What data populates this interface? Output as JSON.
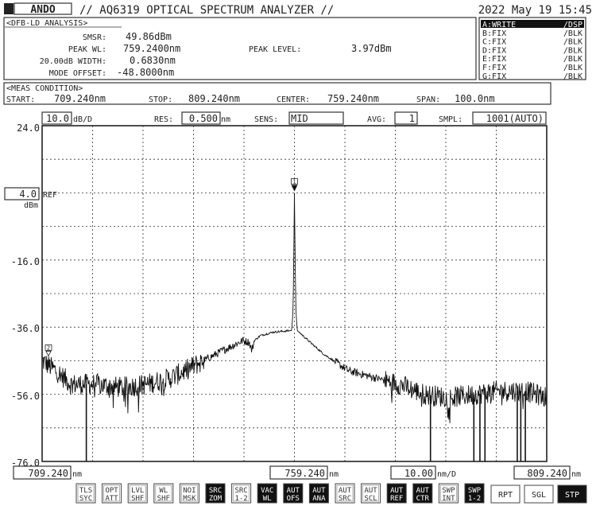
{
  "header": {
    "logo": "ANDO",
    "title": "// AQ6319 OPTICAL SPECTRUM ANALYZER //",
    "datetime": "2022 May 19 15:45"
  },
  "analysis": {
    "title": "<DFB-LD ANALYSIS>",
    "rows": [
      {
        "label": "SMSR:",
        "value": "49.86dBm"
      },
      {
        "label": "PEAK WL:",
        "value": "759.2400nm"
      },
      {
        "label": "20.00dB WIDTH:",
        "value": "0.6830nm"
      },
      {
        "label": "MODE OFFSET:",
        "value": "-48.8000nm"
      }
    ],
    "peak_level_label": "PEAK LEVEL:",
    "peak_level_value": "3.97dBm"
  },
  "traces": [
    {
      "name": "A:WRITE",
      "mode": "/DSP",
      "active": true
    },
    {
      "name": "B:FIX",
      "mode": "/BLK",
      "active": false
    },
    {
      "name": "C:FIX",
      "mode": "/BLK",
      "active": false
    },
    {
      "name": "D:FIX",
      "mode": "/BLK",
      "active": false
    },
    {
      "name": "E:FIX",
      "mode": "/BLK",
      "active": false
    },
    {
      "name": "F:FIX",
      "mode": "/BLK",
      "active": false
    },
    {
      "name": "G:FIX",
      "mode": "/BLK",
      "active": false
    }
  ],
  "meas": {
    "title": "<MEAS CONDITION>",
    "start_label": "START:",
    "start": "709.240nm",
    "stop_label": "STOP:",
    "stop": "809.240nm",
    "center_label": "CENTER:",
    "center": "759.240nm",
    "span_label": "SPAN:",
    "span": "100.0nm"
  },
  "settings": {
    "scale": "10.0",
    "scale_unit": "dB/D",
    "res_label": "RES:",
    "res": "0.500",
    "res_unit": "nm",
    "sens_label": "SENS:",
    "sens": "MID",
    "avg_label": "AVG:",
    "avg": "1",
    "smpl_label": "SMPL:",
    "smpl": "1001(AUTO)"
  },
  "yaxis": {
    "ticks": [
      "24.0",
      "-16.0",
      "-36.0",
      "-56.0",
      "-76.0"
    ],
    "ref_value": "4.0",
    "ref_label": "REF",
    "ref_unit": "dBm"
  },
  "xaxis": {
    "start": "709.240",
    "center": "759.240",
    "stop": "809.240",
    "unit": "nm",
    "span_div": "10.00",
    "span_div_unit": "nm/D"
  },
  "markers": [
    {
      "label": "1"
    },
    {
      "label": "2"
    }
  ],
  "softkeys": [
    {
      "top": "TLS",
      "bottom": "SYC",
      "active": false
    },
    {
      "top": "OPT",
      "bottom": "ATT",
      "active": false
    },
    {
      "top": "LVL",
      "bottom": "SHF",
      "active": false
    },
    {
      "top": "WL",
      "bottom": "SHF",
      "active": false
    },
    {
      "top": "NOI",
      "bottom": "MSK",
      "active": false
    },
    {
      "top": "SRC",
      "bottom": "ZOM",
      "active": true
    },
    {
      "top": "SRC",
      "bottom": "1-2",
      "active": false
    },
    {
      "top": "VAC",
      "bottom": "WL",
      "active": true
    },
    {
      "top": "AUT",
      "bottom": "OFS",
      "active": true
    },
    {
      "top": "AUT",
      "bottom": "ANA",
      "active": true
    },
    {
      "top": "AUT",
      "bottom": "SRC",
      "active": false
    },
    {
      "top": "AUT",
      "bottom": "SCL",
      "active": false
    },
    {
      "top": "AUT",
      "bottom": "REF",
      "active": true
    },
    {
      "top": "AUT",
      "bottom": "CTR",
      "active": true
    },
    {
      "top": "SWP",
      "bottom": "INT",
      "active": false
    },
    {
      "top": "SWP",
      "bottom": "1-2",
      "active": true
    }
  ],
  "sweep_buttons": [
    {
      "label": "RPT",
      "active": false
    },
    {
      "label": "SGL",
      "active": false
    },
    {
      "label": "STP",
      "active": true
    }
  ],
  "chart_data": {
    "type": "line",
    "xlabel": "nm",
    "ylabel": "dBm",
    "xlim": [
      709.24,
      809.24
    ],
    "ylim": [
      -76,
      24
    ],
    "x_div": 10,
    "y_div": 10,
    "grid": true,
    "reference_level": 4.0,
    "series": [
      {
        "x": [
          709.24,
          712,
          715,
          720,
          725,
          730,
          735,
          740,
          745,
          749,
          750.3,
          750.8,
          751.3,
          752.5,
          755,
          758.7,
          759.0,
          759.24,
          759.5,
          759.8,
          762,
          765,
          770,
          775,
          780,
          785,
          790,
          795,
          800,
          805,
          809.24
        ],
        "y": [
          -46,
          -49,
          -53,
          -53,
          -54,
          -53,
          -51,
          -47,
          -43,
          -40,
          -40.5,
          -43,
          -40,
          -38.5,
          -37.5,
          -37,
          -30,
          3.97,
          -30,
          -37,
          -40,
          -44,
          -49,
          -51,
          -53,
          -56,
          -57,
          -56,
          -55,
          -55,
          -57
        ]
      }
    ],
    "dropouts_nm": [
      718.0,
      786.2,
      794.8,
      796.0,
      797.0,
      803.4,
      804.1,
      805.0
    ],
    "marker_positions": [
      {
        "label": "1",
        "x": 759.24,
        "y": 3.97
      },
      {
        "label": "2",
        "x": 710.5,
        "y": -46
      }
    ]
  }
}
